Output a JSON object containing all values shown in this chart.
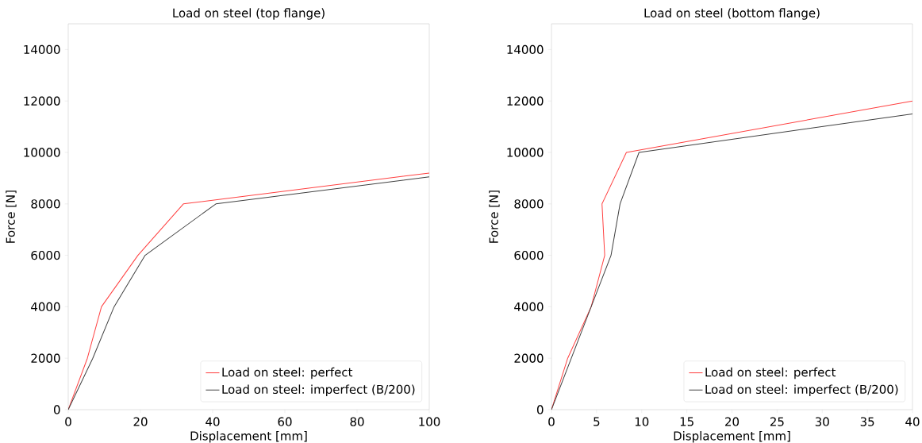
{
  "chart_data": [
    {
      "type": "line",
      "title": "Load on steel (top flange)",
      "xlabel": "Displacement [mm]",
      "ylabel": "Force [N]",
      "xlim": [
        0,
        100
      ],
      "ylim": [
        0,
        15000
      ],
      "xticks": [
        0,
        20,
        40,
        60,
        80,
        100
      ],
      "yticks": [
        0,
        2000,
        4000,
        6000,
        8000,
        10000,
        12000,
        14000
      ],
      "legend": "bottom right",
      "grid": false,
      "series": [
        {
          "name": "Load on steel: perfect",
          "color": "#ff4040",
          "x": [
            0,
            5.3,
            9.2,
            19.3,
            31.9,
            100
          ],
          "values": [
            0,
            2000,
            4000,
            6000,
            8000,
            9200
          ]
        },
        {
          "name": "Load on steel: imperfect (B/200)",
          "color": "#404040",
          "x": [
            0,
            6.8,
            12.7,
            21.3,
            40.9,
            100
          ],
          "values": [
            0,
            2000,
            4000,
            6000,
            8000,
            9050
          ]
        }
      ]
    },
    {
      "type": "line",
      "title": "Load on steel (bottom flange)",
      "xlabel": "Displacement [mm]",
      "ylabel": "Force [N]",
      "xlim": [
        0,
        40
      ],
      "ylim": [
        0,
        15000
      ],
      "xticks": [
        0,
        5,
        10,
        15,
        20,
        25,
        30,
        35,
        40
      ],
      "yticks": [
        0,
        2000,
        4000,
        6000,
        8000,
        10000,
        12000,
        14000
      ],
      "legend": "bottom right",
      "grid": false,
      "series": [
        {
          "name": "Load on steel: perfect",
          "color": "#ff4040",
          "x": [
            0,
            1.8,
            4.4,
            5.9,
            5.6,
            8.3,
            40
          ],
          "values": [
            0,
            2000,
            4000,
            6000,
            8000,
            10000,
            12000
          ]
        },
        {
          "name": "Load on steel: imperfect (B/200)",
          "color": "#404040",
          "x": [
            0,
            4.4,
            6.6,
            7.6,
            9.7,
            40
          ],
          "values": [
            0,
            4000,
            6000,
            8000,
            10000,
            11500
          ]
        }
      ]
    }
  ]
}
